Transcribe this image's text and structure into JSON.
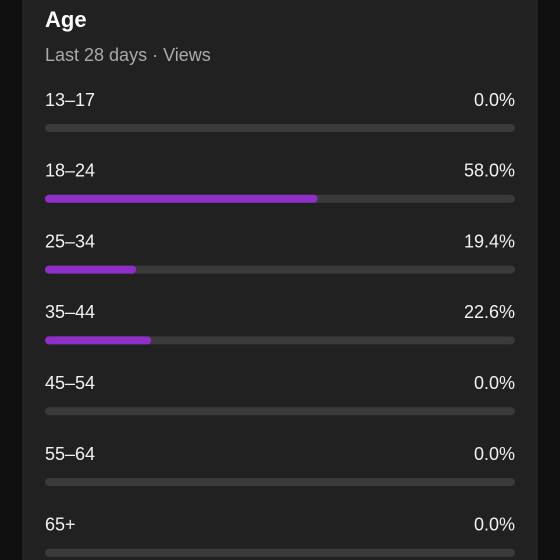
{
  "chart_data": {
    "type": "bar",
    "orientation": "horizontal",
    "title": "Age",
    "subtitle": "Last 28 days · Views",
    "categories": [
      "13–17",
      "18–24",
      "25–34",
      "35–44",
      "45–54",
      "55–64",
      "65+"
    ],
    "values": [
      0,
      58,
      19.4,
      22.6,
      0,
      0,
      0
    ],
    "value_labels": [
      "0.0%",
      "58.0%",
      "19.4%",
      "22.6%",
      "0.0%",
      "0.0%",
      "0.0%"
    ],
    "color": "#8f2ec9",
    "xlim": [
      0,
      100
    ]
  }
}
